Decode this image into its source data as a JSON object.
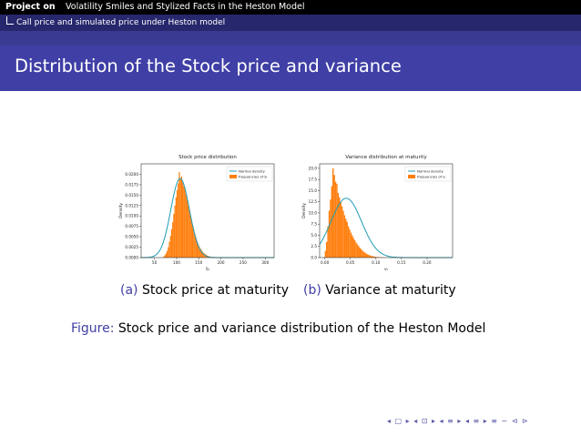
{
  "header": {
    "project_label": "Project on",
    "project_title": "Volatility Smiles and Stylized Facts in the Heston Model",
    "subsection": "Call price and simulated price under Heston model"
  },
  "frame_title": "Distribution of the Stock price and variance",
  "figure": {
    "caption_tag": "Figure:",
    "caption_text": "Stock price and variance distribution of the Heston Model",
    "subfigures": [
      {
        "tag": "(a)",
        "label": "Stock price at maturity"
      },
      {
        "tag": "(b)",
        "label": "Variance at maturity"
      }
    ]
  },
  "nav_symbols": "◂ □ ▸ ◂ ⊡ ▸ ◂ ≡ ▸ ◂ ≡ ▸  ≡  ∽ ⊲ ⊳",
  "colors": {
    "accent": "#3f3fa6",
    "dark_bar": "#27276d",
    "hist": "#ff7f0e",
    "density": "#1f9bb4"
  },
  "chart_data": [
    {
      "type": "bar",
      "title": "Stock price distribution",
      "xlabel": "Sₜ",
      "ylabel": "Density",
      "xlim": [
        20,
        320
      ],
      "ylim": [
        0,
        0.0225
      ],
      "xticks": [
        50,
        100,
        150,
        200,
        250,
        300
      ],
      "yticks": [
        0.0,
        0.0025,
        0.005,
        0.0075,
        0.01,
        0.0125,
        0.015,
        0.0175,
        0.02
      ],
      "ytick_labels": [
        "0.0000",
        "0.0025",
        "0.0050",
        "0.0075",
        "0.0100",
        "0.0125",
        "0.0150",
        "0.0175",
        "0.0200"
      ],
      "legend": [
        "Normal density",
        "frequencies of Sₜ"
      ],
      "legend_position": "top-right",
      "histogram": {
        "bin_start": 70,
        "bin_width": 2.5,
        "values": [
          0.0003,
          0.0006,
          0.001,
          0.0016,
          0.0025,
          0.0038,
          0.0052,
          0.0068,
          0.0085,
          0.0105,
          0.0125,
          0.0145,
          0.0162,
          0.0178,
          0.0205,
          0.0188,
          0.0195,
          0.018,
          0.0172,
          0.0165,
          0.0152,
          0.014,
          0.0128,
          0.0115,
          0.0102,
          0.009,
          0.0078,
          0.0067,
          0.0057,
          0.0048,
          0.004,
          0.0033,
          0.0027,
          0.0022,
          0.0018,
          0.0014,
          0.0011,
          0.0009,
          0.0007,
          0.0005,
          0.0004,
          0.0003,
          0.0002,
          0.00015,
          0.0001,
          8e-05
        ]
      },
      "density_line": {
        "mean": 108,
        "sd": 21,
        "peak": 0.019
      }
    },
    {
      "type": "bar",
      "title": "Variance distribution at maturity",
      "xlabel": "vₜ",
      "ylabel": "Density",
      "xlim": [
        -0.01,
        0.25
      ],
      "ylim": [
        0,
        21
      ],
      "xticks": [
        0.0,
        0.05,
        0.1,
        0.15,
        0.2
      ],
      "xtick_labels": [
        "0.00",
        "0.05",
        "0.10",
        "0.15",
        "0.20"
      ],
      "yticks": [
        0,
        2.5,
        5,
        7.5,
        10,
        12.5,
        15,
        17.5,
        20
      ],
      "ytick_labels": [
        "0.0",
        "2.5",
        "5.0",
        "7.5",
        "10.0",
        "12.5",
        "15.0",
        "17.5",
        "20.0"
      ],
      "legend": [
        "Normal density",
        "frequencies of vₜ"
      ],
      "legend_position": "top-right",
      "histogram": {
        "bin_start": 0.0,
        "bin_width": 0.0025,
        "values": [
          1.5,
          3.5,
          7,
          10.5,
          13,
          16,
          20,
          18.5,
          17,
          16.5,
          14.5,
          13.5,
          12.5,
          11.5,
          10.5,
          9.5,
          8.7,
          8,
          7,
          6.3,
          5.6,
          5,
          4.4,
          3.9,
          3.4,
          3,
          2.6,
          2.2,
          1.9,
          1.6,
          1.3,
          1.1,
          0.9,
          0.75,
          0.6,
          0.5,
          0.4,
          0.32,
          0.25,
          0.2,
          0.15,
          0.12,
          0.1,
          0.08,
          0.06,
          0.05,
          0.04,
          0.03,
          0.02,
          0.02
        ]
      },
      "density_line": {
        "mean": 0.042,
        "sd": 0.03,
        "peak": 13.3
      }
    }
  ]
}
